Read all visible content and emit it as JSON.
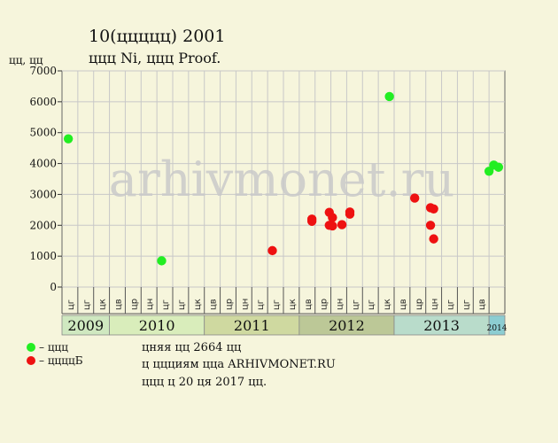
{
  "header": {
    "title": "10(ццццц) 2001",
    "subtitle": "ццц Ni, ццц Proof."
  },
  "chart_data": {
    "type": "scatter",
    "ylabel": "цц, цц",
    "ylim": [
      0,
      7000
    ],
    "yticks": [
      0,
      1000,
      2000,
      3000,
      4000,
      5000,
      6000,
      7000
    ],
    "grid": true,
    "month_labels": [
      "цг",
      "цг",
      "цк",
      "цв",
      "цр",
      "цн",
      "цг",
      "цг",
      "цк",
      "цв",
      "цр",
      "цн",
      "цг",
      "цг",
      "цк",
      "цв",
      "цр",
      "цн",
      "цг",
      "цг",
      "цк",
      "цв",
      "цр",
      "цн",
      "цг",
      "цг",
      "цв"
    ],
    "years": [
      {
        "label": "2009",
        "start": 0,
        "span": 3,
        "color": "#cfe8c0"
      },
      {
        "label": "2010",
        "start": 3,
        "span": 6,
        "color": "#d9edbb"
      },
      {
        "label": "2011",
        "start": 9,
        "span": 6,
        "color": "#cfd9a0"
      },
      {
        "label": "2012",
        "start": 15,
        "span": 6,
        "color": "#bcc897"
      },
      {
        "label": "2013",
        "start": 21,
        "span": 6,
        "color": "#b9dccb"
      },
      {
        "label": "2014",
        "start": 27,
        "span": 1,
        "color": "#8ccdd2"
      }
    ],
    "series": [
      {
        "name": "ццц",
        "color": "#22ee22",
        "points": [
          {
            "x": 0.4,
            "y": 4800
          },
          {
            "x": 6.3,
            "y": 850
          },
          {
            "x": 20.7,
            "y": 6170
          },
          {
            "x": 27.0,
            "y": 3750
          },
          {
            "x": 27.3,
            "y": 3950
          },
          {
            "x": 27.6,
            "y": 3880
          }
        ]
      },
      {
        "name": "ццццБ",
        "color": "#ee1111",
        "points": [
          {
            "x": 13.3,
            "y": 1180
          },
          {
            "x": 15.8,
            "y": 2200
          },
          {
            "x": 15.8,
            "y": 2130
          },
          {
            "x": 16.9,
            "y": 2420
          },
          {
            "x": 16.9,
            "y": 2000
          },
          {
            "x": 17.1,
            "y": 2250
          },
          {
            "x": 17.1,
            "y": 1980
          },
          {
            "x": 17.7,
            "y": 2020
          },
          {
            "x": 18.2,
            "y": 2430
          },
          {
            "x": 18.2,
            "y": 2360
          },
          {
            "x": 22.3,
            "y": 2880
          },
          {
            "x": 23.3,
            "y": 2570
          },
          {
            "x": 23.5,
            "y": 2530
          },
          {
            "x": 23.3,
            "y": 2000
          },
          {
            "x": 23.5,
            "y": 1560
          }
        ]
      }
    ],
    "watermark": "arhivmonet.ru"
  },
  "footer": {
    "line1": "цняя цц 2664 цц",
    "line2": "ц ццциям цца ARHIVMONET.RU",
    "line3": "ццц ц 20 ця 2017 цц."
  }
}
